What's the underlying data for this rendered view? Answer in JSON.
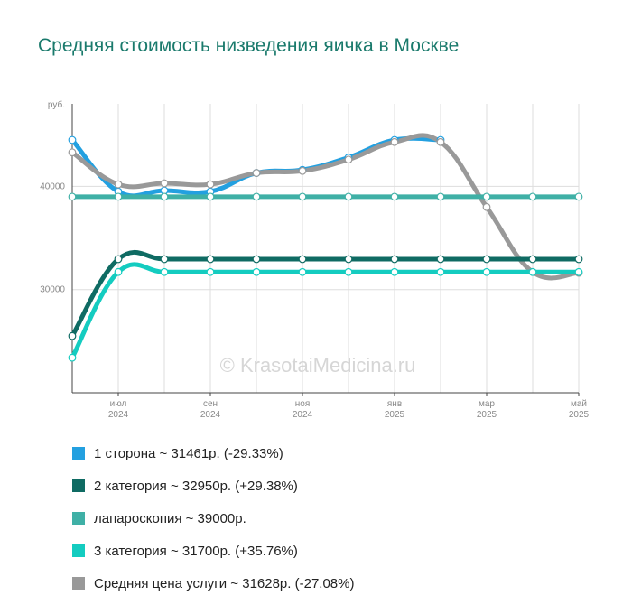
{
  "chart_title": "Средняя стоимость низведения яичка в Москве",
  "watermark": "© KrasotaiMedicina.ru",
  "chart_data": {
    "type": "line",
    "title": "Средняя стоимость низведения яичка в Москве",
    "ylabel": "руб.",
    "ylim": [
      20000,
      48000
    ],
    "yticks": [
      30000,
      40000
    ],
    "x_labels": [
      {
        "index": 1,
        "month": "июл",
        "year": "2024"
      },
      {
        "index": 3,
        "month": "сен",
        "year": "2024"
      },
      {
        "index": 5,
        "month": "ноя",
        "year": "2024"
      },
      {
        "index": 7,
        "month": "янв",
        "year": "2025"
      },
      {
        "index": 9,
        "month": "мар",
        "year": "2025"
      },
      {
        "index": 11,
        "month": "май",
        "year": "2025"
      }
    ],
    "x_count": 12,
    "series": [
      {
        "name": "1 сторона",
        "color": "#23a0e0",
        "values": [
          44500,
          39500,
          39600,
          39500,
          41300,
          41600,
          42800,
          44500,
          44500,
          null,
          null,
          null
        ]
      },
      {
        "name": "Средняя цена услуги",
        "color": "#999999",
        "values": [
          43300,
          40200,
          40300,
          40200,
          41300,
          41500,
          42600,
          44300,
          44300,
          38000,
          31700,
          31628
        ]
      },
      {
        "name": "лапароскопия",
        "color": "#3fb0a6",
        "values": [
          39000,
          39000,
          39000,
          39000,
          39000,
          39000,
          39000,
          39000,
          39000,
          39000,
          39000,
          39000
        ]
      },
      {
        "name": "2 категория",
        "color": "#0f6b63",
        "values": [
          25500,
          32950,
          32950,
          32950,
          32950,
          32950,
          32950,
          32950,
          32950,
          32950,
          32950,
          32950
        ]
      },
      {
        "name": "3 категория",
        "color": "#14ccc0",
        "values": [
          23400,
          31700,
          31700,
          31700,
          31700,
          31700,
          31700,
          31700,
          31700,
          31700,
          31700,
          31700
        ]
      }
    ]
  },
  "legend": [
    {
      "label": "1 сторона ~ 31461р. (-29.33%)",
      "color": "#23a0e0"
    },
    {
      "label": "2 категория ~ 32950р. (+29.38%)",
      "color": "#0f6b63"
    },
    {
      "label": "лапароскопия ~ 39000р.",
      "color": "#3fb0a6"
    },
    {
      "label": "3 категория ~ 31700р. (+35.76%)",
      "color": "#14ccc0"
    },
    {
      "label": "Средняя цена услуги ~ 31628р. (-27.08%)",
      "color": "#999999"
    }
  ]
}
